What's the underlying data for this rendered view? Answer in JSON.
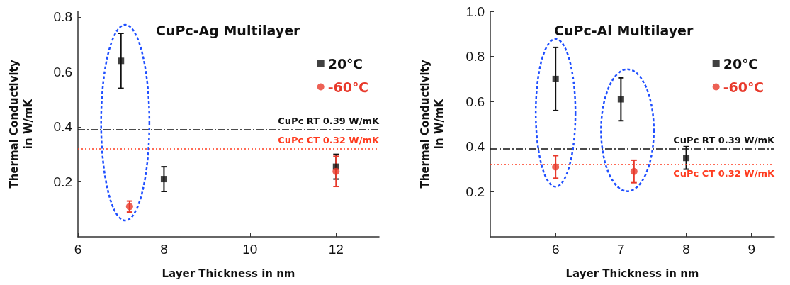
{
  "chart_data": [
    {
      "type": "scatter",
      "title": "CuPc-Ag Multilayer",
      "xlabel": "Layer Thickness in nm",
      "ylabel": "Thermal Conductivity\nin W/mK",
      "xlim": [
        6,
        13
      ],
      "xticks": [
        6,
        8,
        10,
        12
      ],
      "ylim": [
        0,
        0.82
      ],
      "yticks": [
        0.2,
        0.4,
        0.6,
        0.8
      ],
      "legend": "top right",
      "grid": false,
      "series": [
        {
          "name": "20℃",
          "color": "#111111",
          "marker": "square",
          "x": [
            7,
            8,
            12
          ],
          "values": [
            0.64,
            0.21,
            0.255
          ],
          "errors": [
            0.1,
            0.045,
            0.045
          ]
        },
        {
          "name": "-60℃",
          "color": "#e8392b",
          "marker": "circle",
          "x": [
            7.2,
            12
          ],
          "values": [
            0.11,
            0.238
          ],
          "errors": [
            0.02,
            0.055
          ]
        }
      ],
      "ref_lines": [
        {
          "axis": "y",
          "value": 0.39,
          "label": "CuPc RT 0.39 W/mK",
          "color": "#111111",
          "line_style": "dashed"
        },
        {
          "axis": "y",
          "value": 0.32,
          "label": "CuPc CT 0.32 W/mK",
          "color": "#ff3b1f",
          "line_style": "dotted"
        }
      ]
    },
    {
      "type": "scatter",
      "title": "CuPc-Al Multilayer",
      "xlabel": "Layer Thickness in nm",
      "ylabel": "Thermal Conductivity\nin W/mK",
      "xlim": [
        5,
        9.35
      ],
      "xticks": [
        6,
        7,
        8,
        9
      ],
      "ylim": [
        0,
        1.0
      ],
      "yticks": [
        0.2,
        0.4,
        0.6,
        0.8,
        {
          "value": 1.0,
          "label": "1.0"
        }
      ],
      "legend": "top right",
      "grid": false,
      "series": [
        {
          "name": "20℃",
          "color": "#111111",
          "marker": "square",
          "x": [
            6,
            7,
            8
          ],
          "values": [
            0.7,
            0.61,
            0.35
          ],
          "errors": [
            0.14,
            0.095,
            0.05
          ]
        },
        {
          "name": "-60℃",
          "color": "#e8392b",
          "marker": "circle",
          "x": [
            6,
            7.2
          ],
          "values": [
            0.31,
            0.29
          ],
          "errors": [
            0.05,
            0.05
          ]
        }
      ],
      "ref_lines": [
        {
          "axis": "y",
          "value": 0.39,
          "label": "CuPc RT 0.39 W/mK",
          "color": "#111111",
          "line_style": "dashed"
        },
        {
          "axis": "y",
          "value": 0.32,
          "label": "CuPc CT 0.32 W/mK",
          "color": "#ff3b1f",
          "line_style": "dotted"
        }
      ]
    }
  ]
}
